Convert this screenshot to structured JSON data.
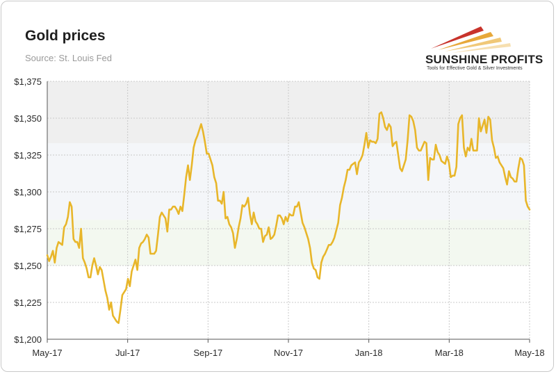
{
  "header": {
    "title": "Gold prices",
    "source": "Source: St. Louis Fed"
  },
  "logo": {
    "name": "SUNSHINE PROFITS",
    "tagline": "Tools for Effective Gold & Silver Investments"
  },
  "colors": {
    "line": "#e8b62a",
    "band_top": "#efefef",
    "band_middle": "#f4f6f9",
    "band_bottom": "#f3f8f0",
    "grid": "#c8c8c8",
    "logo_red": "#c8332b",
    "logo_gold": "#e7a83a"
  },
  "chart_data": {
    "type": "line",
    "title": "Gold prices",
    "subtitle": "Source: St. Louis Fed",
    "xlabel": "",
    "ylabel": "",
    "ylim": [
      1200,
      1375
    ],
    "y_ticks": [
      "$1,200",
      "$1,225",
      "$1,250",
      "$1,275",
      "$1,300",
      "$1,325",
      "$1,350",
      "$1,375"
    ],
    "x_ticks": [
      "May-17",
      "Jul-17",
      "Sep-17",
      "Nov-17",
      "Jan-18",
      "Mar-18",
      "May-18"
    ],
    "grid": true,
    "legend": "none",
    "x_axis": "May-17 to May-18, step = 1 day",
    "values": [
      1257,
      1253,
      1256,
      1260,
      1252,
      1262,
      1266,
      1265,
      1264,
      1276,
      1278,
      1283,
      1293,
      1290,
      1268,
      1266,
      1266,
      1262,
      1275,
      1255,
      1252,
      1248,
      1242,
      1242,
      1250,
      1255,
      1250,
      1244,
      1249,
      1247,
      1240,
      1233,
      1228,
      1220,
      1225,
      1216,
      1214,
      1212,
      1211,
      1220,
      1230,
      1232,
      1234,
      1241,
      1236,
      1246,
      1250,
      1254,
      1247,
      1262,
      1265,
      1266,
      1268,
      1271,
      1269,
      1258,
      1258,
      1258,
      1260,
      1271,
      1283,
      1286,
      1284,
      1282,
      1273,
      1288,
      1288,
      1290,
      1290,
      1288,
      1285,
      1290,
      1287,
      1298,
      1310,
      1318,
      1308,
      1318,
      1330,
      1335,
      1338,
      1342,
      1346,
      1341,
      1334,
      1326,
      1326,
      1322,
      1318,
      1310,
      1306,
      1294,
      1294,
      1292,
      1300,
      1282,
      1283,
      1278,
      1276,
      1272,
      1262,
      1268,
      1276,
      1282,
      1291,
      1290,
      1292,
      1296,
      1285,
      1278,
      1286,
      1280,
      1278,
      1275,
      1275,
      1266,
      1270,
      1271,
      1276,
      1268,
      1269,
      1271,
      1277,
      1284,
      1284,
      1282,
      1278,
      1283,
      1280,
      1285,
      1284,
      1284,
      1290,
      1290,
      1293,
      1286,
      1279,
      1276,
      1272,
      1268,
      1262,
      1252,
      1248,
      1247,
      1242,
      1241,
      1252,
      1256,
      1258,
      1261,
      1264,
      1264,
      1266,
      1269,
      1274,
      1279,
      1291,
      1296,
      1303,
      1308,
      1315,
      1315,
      1318,
      1319,
      1320,
      1312,
      1320,
      1322,
      1325,
      1332,
      1340,
      1330,
      1335,
      1334,
      1334,
      1333,
      1336,
      1353,
      1354,
      1350,
      1344,
      1342,
      1346,
      1344,
      1331,
      1333,
      1334,
      1325,
      1316,
      1314,
      1318,
      1322,
      1335,
      1352,
      1351,
      1348,
      1342,
      1330,
      1328,
      1328,
      1331,
      1334,
      1333,
      1308,
      1323,
      1322,
      1322,
      1332,
      1327,
      1325,
      1321,
      1320,
      1319,
      1324,
      1320,
      1310,
      1311,
      1311,
      1317,
      1346,
      1350,
      1352,
      1330,
      1324,
      1330,
      1328,
      1336,
      1328,
      1328,
      1328,
      1350,
      1341,
      1345,
      1349,
      1340,
      1351,
      1349,
      1335,
      1330,
      1323,
      1324,
      1320,
      1318,
      1316,
      1310,
      1305,
      1314,
      1310,
      1309,
      1307,
      1307,
      1316,
      1323,
      1322,
      1318,
      1294,
      1290,
      1288
    ]
  }
}
